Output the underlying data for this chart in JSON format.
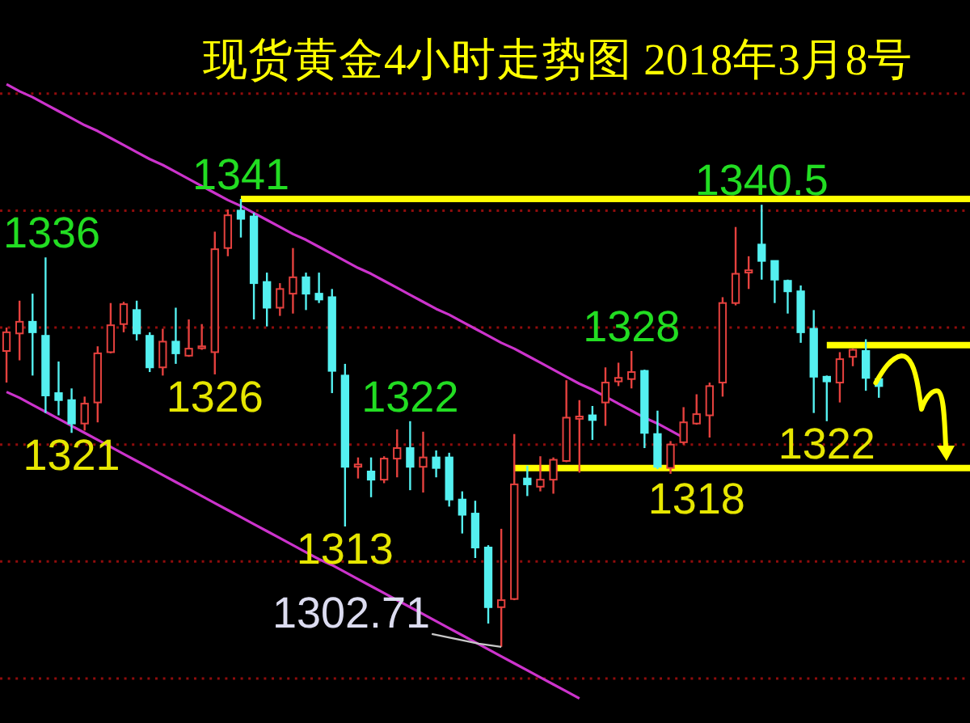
{
  "chart_data": {
    "type": "candlestick",
    "title": "现货黄金4小时走势图 2018年3月8号",
    "categories": [
      null,
      null,
      null,
      null,
      null,
      null,
      null,
      null,
      null,
      null,
      null,
      null,
      null,
      null,
      null,
      null,
      null,
      null,
      null,
      null,
      null,
      null,
      null,
      null,
      null,
      null,
      null,
      null,
      null,
      null,
      null,
      null,
      null,
      null,
      null,
      null,
      null,
      null,
      null,
      null,
      null,
      null,
      null,
      null,
      null,
      null,
      null,
      null,
      null,
      null,
      null,
      null,
      null,
      null,
      null,
      null,
      null,
      null,
      null,
      null,
      null,
      null,
      null,
      null,
      null,
      null,
      null,
      null,
      null,
      null,
      null,
      null,
      null,
      null,
      null
    ],
    "ohlc": [
      [
        1328.0,
        1330.0,
        1325.3,
        1329.6
      ],
      [
        1329.5,
        1332.3,
        1327.2,
        1330.5
      ],
      [
        1330.5,
        1332.9,
        1325.9,
        1329.6
      ],
      [
        1329.3,
        1336,
        1322.7,
        1324.2
      ],
      [
        1324.4,
        1327.1,
        1322.5,
        1323.8
      ],
      [
        1323.8,
        1324.8,
        1321,
        1321.8
      ],
      [
        1321.8,
        1324.1,
        1321.2,
        1323.5
      ],
      [
        1323.6,
        1328.4,
        1321.9,
        1327.8
      ],
      [
        1327.9,
        1332.1,
        1327.8,
        1330.2
      ],
      [
        1330.3,
        1332.2,
        1329.6,
        1332.0
      ],
      [
        1331.5,
        1332.3,
        1328.9,
        1329.5
      ],
      [
        1329.3,
        1329.6,
        1326.2,
        1326.6
      ],
      [
        1326.6,
        1329.9,
        1325.9,
        1328.8
      ],
      [
        1328.8,
        1331.7,
        1326.9,
        1327.8
      ],
      [
        1327.6,
        1330.7,
        1327.5,
        1328.2
      ],
      [
        1328.3,
        1330.3,
        1328.1,
        1328.4
      ],
      [
        1327.9,
        1338.2,
        1326,
        1336.7
      ],
      [
        1336.8,
        1340.1,
        1336.1,
        1339.6
      ],
      [
        1340.0,
        1341,
        1337.7,
        1339.3
      ],
      [
        1339.5,
        1339.8,
        1330.7,
        1333.8
      ],
      [
        1333.9,
        1334.7,
        1330.1,
        1331.7
      ],
      [
        1331.7,
        1333.8,
        1331.0,
        1333.3
      ],
      [
        1332.9,
        1336.8,
        1331.2,
        1334.3
      ],
      [
        1334.3,
        1334.7,
        1331.5,
        1332.9
      ],
      [
        1332.9,
        1334.7,
        1332.1,
        1332.4
      ],
      [
        1332.6,
        1333.3,
        1324.4,
        1326.3
      ],
      [
        1325.9,
        1326.9,
        1313,
        1318.1
      ],
      [
        1318.1,
        1318.9,
        1317.1,
        1318.3
      ],
      [
        1317.7,
        1318.9,
        1315.5,
        1317.0
      ],
      [
        1317.0,
        1319.0,
        1316.7,
        1318.8
      ],
      [
        1318.8,
        1321.3,
        1317.2,
        1319.7
      ],
      [
        1319.7,
        1322,
        1316.1,
        1318.1
      ],
      [
        1318.1,
        1321.1,
        1315.9,
        1318.9
      ],
      [
        1318.9,
        1319.5,
        1317.2,
        1318.0
      ],
      [
        1318.9,
        1319.3,
        1314.7,
        1315.3
      ],
      [
        1315.3,
        1316.0,
        1312.4,
        1314.0
      ],
      [
        1314.1,
        1315.2,
        1310.3,
        1311.2
      ],
      [
        1311.2,
        1311.4,
        1304.7,
        1306.1
      ],
      [
        1306.1,
        1312.8,
        1302.71,
        1306.7
      ],
      [
        1306.8,
        1320.9,
        1306.7,
        1316.6
      ],
      [
        1317.1,
        1318.2,
        1315.6,
        1316.6
      ],
      [
        1316.4,
        1319.0,
        1316.0,
        1317.0
      ],
      [
        1317.0,
        1318.9,
        1315.8,
        1318.7
      ],
      [
        1318.6,
        1325.5,
        1318.5,
        1322.3
      ],
      [
        1322.2,
        1323.8,
        1317.6,
        1322.4
      ],
      [
        1322.5,
        1323.3,
        1320.4,
        1322.1
      ],
      [
        1323.6,
        1326.6,
        1321.6,
        1325.3
      ],
      [
        1325.4,
        1327.0,
        1325.0,
        1325.7
      ],
      [
        1325.6,
        1328,
        1324.8,
        1326.2
      ],
      [
        1326.3,
        1326.4,
        1319.7,
        1321.0
      ],
      [
        1320.9,
        1322.9,
        1317.9,
        1318.1
      ],
      [
        1318.0,
        1320.3,
        1317.5,
        1320.0
      ],
      [
        1320.2,
        1323.2,
        1320.0,
        1321.9
      ],
      [
        1321.8,
        1324.3,
        1321.7,
        1322.6
      ],
      [
        1322.5,
        1325.3,
        1320.6,
        1325.0
      ],
      [
        1325.3,
        1332.6,
        1324.1,
        1332.1
      ],
      [
        1332.1,
        1338.6,
        1331.9,
        1334.6
      ],
      [
        1334.7,
        1336.1,
        1333.3,
        1334.9
      ],
      [
        1337.1,
        1340.5,
        1334.1,
        1335.7
      ],
      [
        1335.7,
        1335.7,
        1332.1,
        1334.1
      ],
      [
        1334.0,
        1334.1,
        1331.2,
        1333.1
      ],
      [
        1333.1,
        1333.6,
        1328.7,
        1329.6
      ],
      [
        1329.9,
        1331.5,
        1322.7,
        1325.8
      ],
      [
        1325.8,
        1325.9,
        1322,
        1325.4
      ],
      [
        1325.3,
        1327.9,
        1323.6,
        1327.3
      ],
      [
        1327.5,
        1328.2,
        1326.7,
        1328.1
      ],
      [
        1328.0,
        1329.0,
        1324.6,
        1325.7
      ],
      [
        1325.6,
        1325.7,
        1324.0,
        1325.0
      ],
      null,
      null,
      null,
      null,
      null,
      null,
      null
    ],
    "colors": [
      "#e5413e",
      "#e5413e",
      "#54f0f0",
      "#54f0f0",
      "#54f0f0",
      "#54f0f0",
      "#e5413e",
      "#e5413e",
      "#e5413e",
      "#e5413e",
      "#54f0f0",
      "#54f0f0",
      "#e5413e",
      "#54f0f0",
      "#e5413e",
      "#e5413e",
      "#e5413e",
      "#e5413e",
      "#54f0f0",
      "#54f0f0",
      "#54f0f0",
      "#e5413e",
      "#e5413e",
      "#54f0f0",
      "#54f0f0",
      "#54f0f0",
      "#54f0f0",
      "#e5413e",
      "#54f0f0",
      "#e5413e",
      "#e5413e",
      "#54f0f0",
      "#e5413e",
      "#54f0f0",
      "#54f0f0",
      "#54f0f0",
      "#54f0f0",
      "#54f0f0",
      "#e5413e",
      "#e5413e",
      "#54f0f0",
      "#e5413e",
      "#e5413e",
      "#e5413e",
      "#e5413e",
      "#54f0f0",
      "#e5413e",
      "#e5413e",
      "#e5413e",
      "#54f0f0",
      "#54f0f0",
      "#e5413e",
      "#e5413e",
      "#e5413e",
      "#e5413e",
      "#e5413e",
      "#e5413e",
      "#e5413e",
      "#54f0f0",
      "#54f0f0",
      "#54f0f0",
      "#54f0f0",
      "#54f0f0",
      "#54f0f0",
      "#e5413e",
      "#e5413e",
      "#54f0f0",
      "#54f0f0",
      null,
      null,
      null,
      null,
      null,
      null,
      null
    ],
    "series": [
      {
        "type": "line",
        "color": "#cc33cc",
        "values": [
          1350.8,
          1350.2,
          1349.7,
          1349.1,
          1348.5,
          1347.9,
          1347.3,
          1346.8,
          1346.2,
          1345.6,
          1345.0,
          1344.4,
          1343.9,
          1343.3,
          1342.7,
          1342.1,
          1341.5,
          1340.9,
          1340.4,
          1339.8,
          1339.2,
          1338.6,
          1338.0,
          1337.5,
          1336.9,
          1336.3,
          1335.7,
          1335.1,
          1334.6,
          1334.0,
          1333.4,
          1332.8,
          1332.2,
          1331.6,
          1331.1,
          1330.5,
          1329.9,
          1329.3,
          1328.7,
          1328.2,
          1327.6,
          1327.0,
          1326.4,
          1325.8,
          1325.2,
          1324.7,
          1324.1,
          1323.5,
          1322.9,
          1322.3,
          1321.8,
          1321.2,
          1320.6,
          null,
          null,
          null,
          null,
          null,
          null,
          null,
          null,
          null,
          null,
          null,
          null,
          null,
          null,
          null,
          null,
          null,
          null,
          null,
          null,
          null,
          null
        ]
      },
      {
        "type": "line",
        "color": "#cc33cc",
        "values": [
          1324.5,
          1324.0,
          1323.4,
          1322.8,
          1322.2,
          1321.6,
          1321.0,
          1320.4,
          1319.8,
          1319.2,
          1318.6,
          1318.0,
          1317.4,
          1316.8,
          1316.2,
          1315.6,
          1315.0,
          1314.4,
          1313.8,
          1313.2,
          1312.6,
          1312.0,
          1311.4,
          1310.8,
          1310.2,
          1309.7,
          1309.1,
          1308.5,
          1307.9,
          1307.3,
          1306.7,
          1306.1,
          1305.5,
          1304.9,
          1304.3,
          1303.7,
          1303.1,
          1302.5,
          1301.9,
          1301.3,
          1300.7,
          1300.1,
          1299.5,
          1298.9,
          1298.3,
          null,
          null,
          null,
          null,
          null,
          null,
          null,
          null,
          null,
          null,
          null,
          null,
          null,
          null,
          null,
          null,
          null,
          null,
          null,
          null,
          null,
          null,
          null,
          null,
          null,
          null,
          null,
          null,
          null,
          null
        ]
      },
      {
        "type": "line",
        "color": "#ffff00",
        "values": [
          null,
          null,
          null,
          null,
          null,
          null,
          null,
          null,
          null,
          null,
          null,
          null,
          null,
          null,
          null,
          null,
          null,
          null,
          1341,
          1341,
          1341,
          1341,
          1341,
          1341,
          1341,
          1341,
          1341,
          1341,
          1341,
          1341,
          1341,
          1341,
          1341,
          1341,
          1341,
          1341,
          1341,
          1341,
          1341,
          1341,
          1341,
          1341,
          1341,
          1341,
          1341,
          1341,
          1341,
          1341,
          1341,
          1341,
          1341,
          1341,
          1341,
          1341,
          1341,
          1341,
          1341,
          1341,
          1341,
          1341,
          1341,
          1341,
          1341,
          1341,
          1341,
          1341,
          1341,
          1341,
          1341,
          1341,
          1341,
          1341,
          1341,
          1341,
          1341
        ]
      },
      {
        "type": "line",
        "color": "#ffff00",
        "values": [
          null,
          null,
          null,
          null,
          null,
          null,
          null,
          null,
          null,
          null,
          null,
          null,
          null,
          null,
          null,
          null,
          null,
          null,
          null,
          null,
          null,
          null,
          null,
          null,
          null,
          null,
          null,
          null,
          null,
          null,
          null,
          null,
          null,
          null,
          null,
          null,
          null,
          null,
          null,
          1318,
          1318,
          1318,
          1318,
          1318,
          1318,
          1318,
          1318,
          1318,
          1318,
          1318,
          1318,
          1318,
          1318,
          1318,
          1318,
          1318,
          1318,
          1318,
          1318,
          1318,
          1318,
          1318,
          1318,
          1318,
          1318,
          1318,
          1318,
          1318,
          1318,
          1318,
          1318,
          1318,
          1318,
          1318,
          1318
        ]
      },
      {
        "type": "line",
        "color": "#ffff00",
        "values": [
          null,
          null,
          null,
          null,
          null,
          null,
          null,
          null,
          null,
          null,
          null,
          null,
          null,
          null,
          null,
          null,
          null,
          null,
          null,
          null,
          null,
          null,
          null,
          null,
          null,
          null,
          null,
          null,
          null,
          null,
          null,
          null,
          null,
          null,
          null,
          null,
          null,
          null,
          null,
          null,
          null,
          null,
          null,
          null,
          null,
          null,
          null,
          null,
          null,
          null,
          null,
          null,
          null,
          null,
          null,
          null,
          null,
          null,
          null,
          null,
          null,
          null,
          null,
          1328.5,
          1328.5,
          1328.5,
          1328.5,
          1328.5,
          1328.5,
          1328.5,
          1328.5,
          1328.5,
          1328.5,
          1328.5,
          1328.5
        ]
      }
    ],
    "yticks": [
      {
        "value": 1300,
        "label": null
      },
      {
        "value": 1310,
        "label": null
      },
      {
        "value": 1320,
        "label": null
      },
      {
        "value": 1330,
        "label": null
      },
      {
        "value": 1340,
        "label": null
      },
      {
        "value": 1350,
        "label": null
      }
    ],
    "grid": "y",
    "annotations": [
      {
        "text": "1336",
        "y": 1336
      },
      {
        "text": "1321",
        "y": 1321
      },
      {
        "text": "1326",
        "y": 1326
      },
      {
        "text": "1341",
        "y": 1341
      },
      {
        "text": "1313",
        "y": 1313
      },
      {
        "text": "1322",
        "y": 1322
      },
      "1302.71",
      {
        "text": "1318",
        "y": 1318
      },
      {
        "text": "1328",
        "y": 1328
      },
      {
        "text": "1340.5",
        "y": 1340.5
      },
      {
        "text": "1322",
        "y": 1322
      }
    ]
  }
}
